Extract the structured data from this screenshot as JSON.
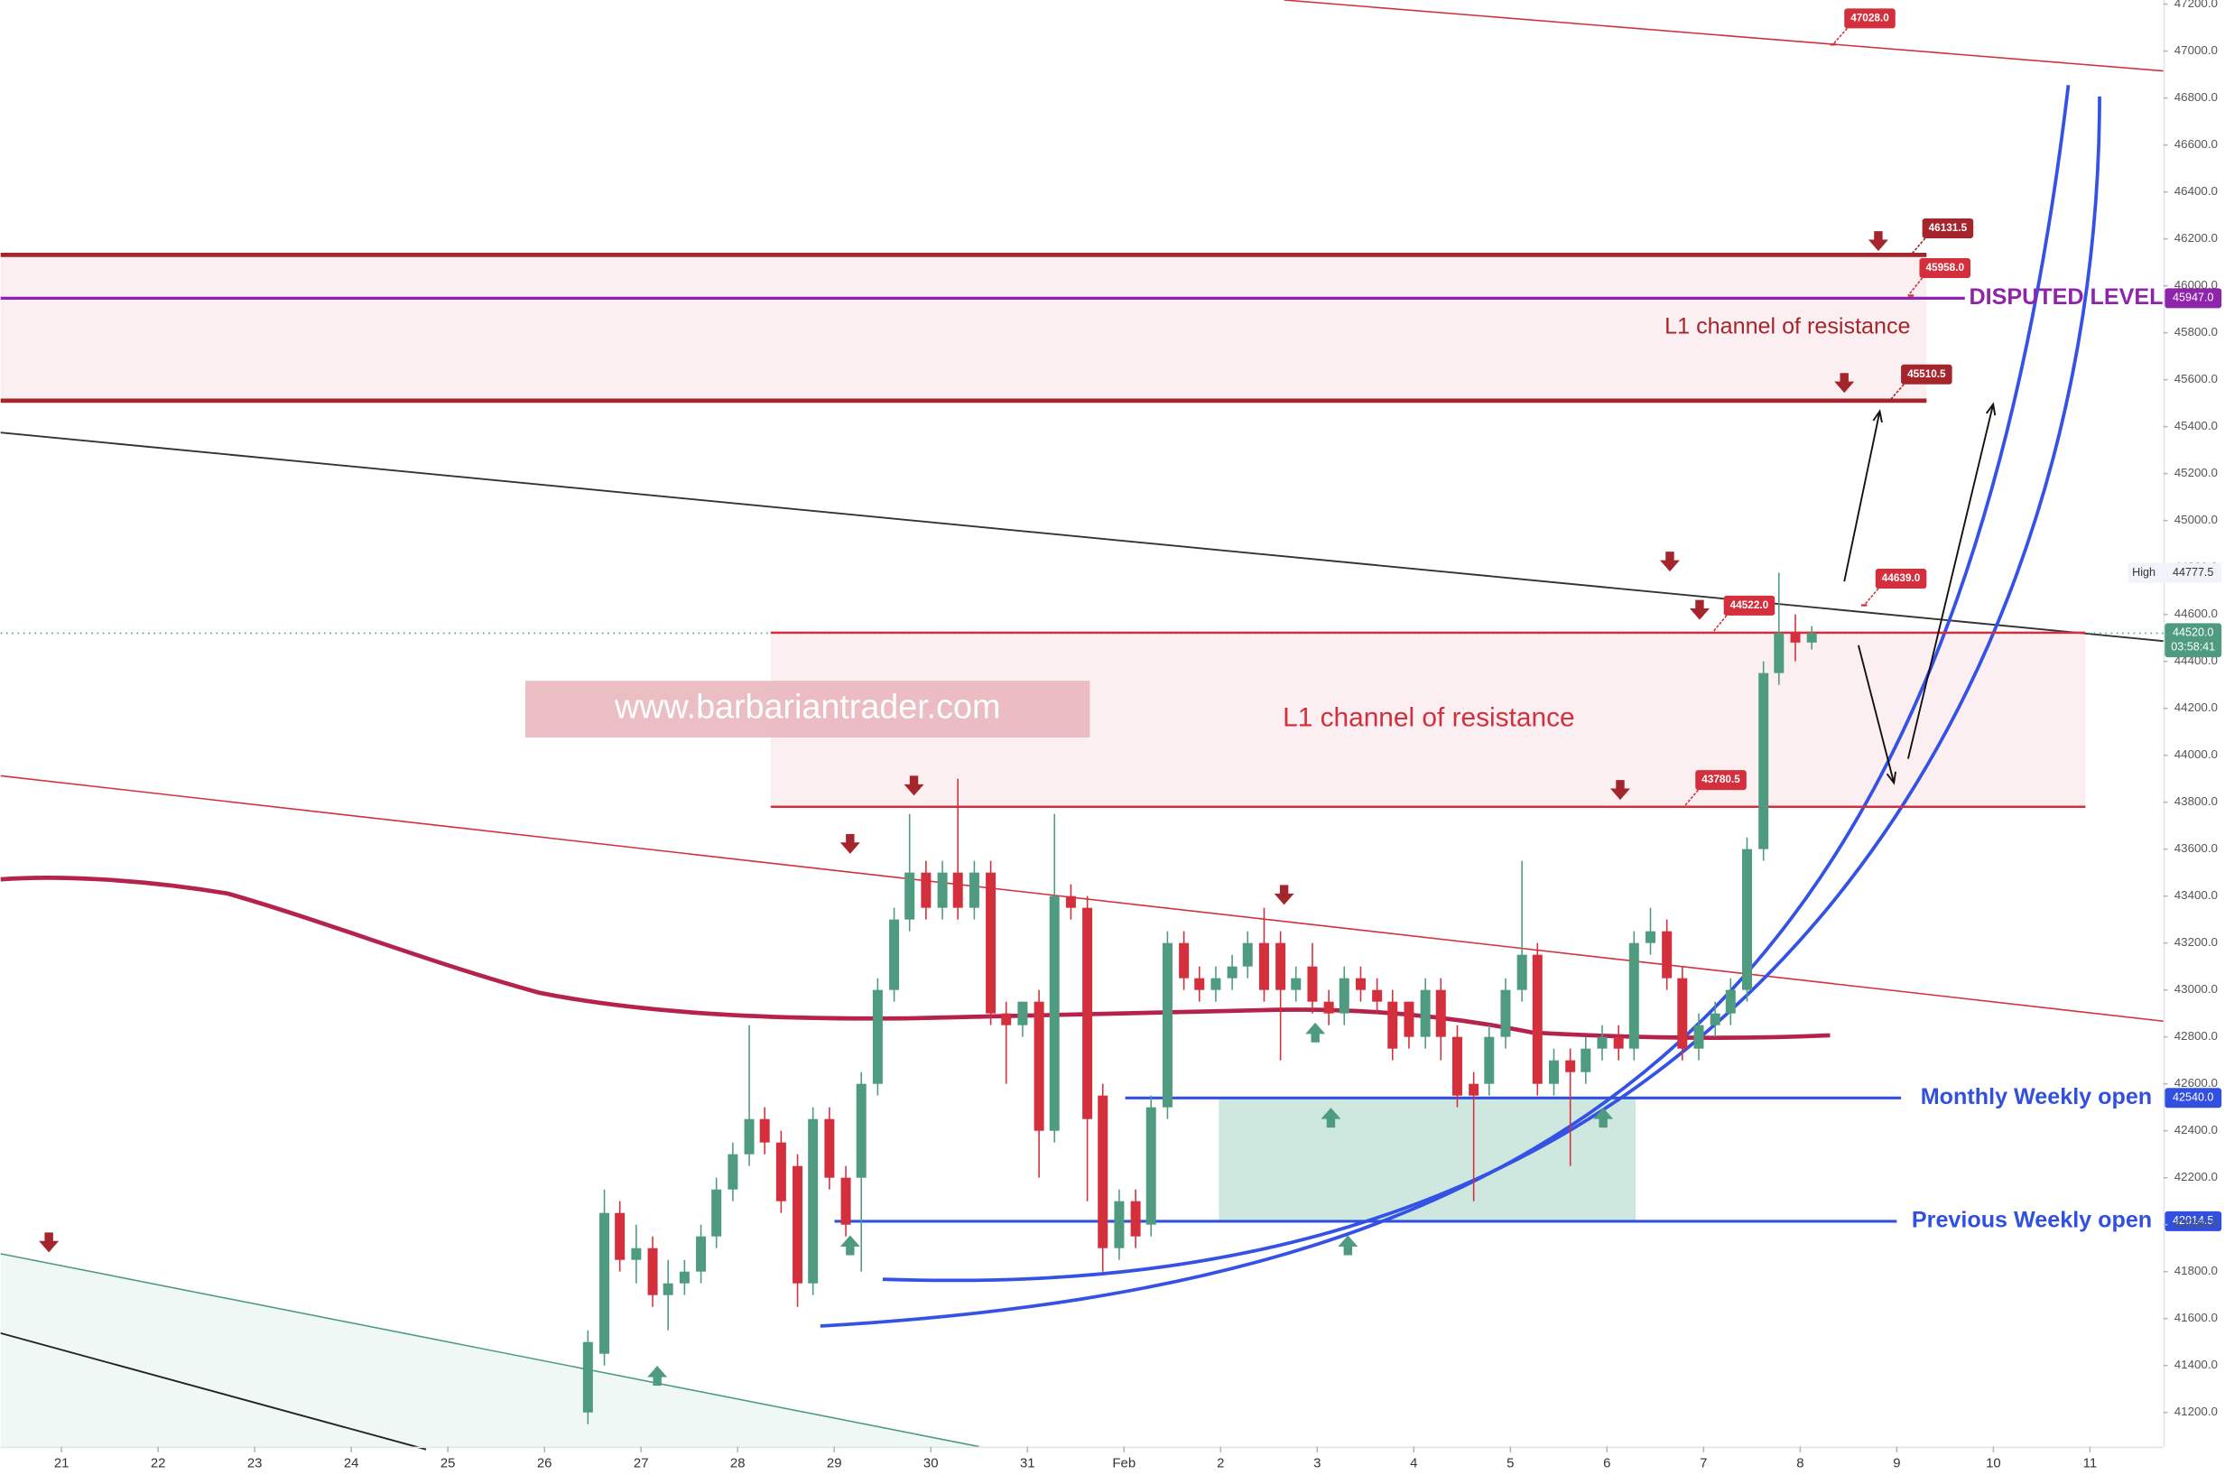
{
  "chart_data": {
    "type": "candlestick",
    "watermark": "www.barbariantrader.com",
    "up_color": "#4f9b80",
    "down_color": "#d42f3c",
    "grid": false,
    "x": [
      26.45,
      26.62,
      26.78,
      26.95,
      27.12,
      27.28,
      27.45,
      27.62,
      27.78,
      27.95,
      28.12,
      28.28,
      28.45,
      28.62,
      28.78,
      28.95,
      29.12,
      29.28,
      29.45,
      29.62,
      29.78,
      29.95,
      30.12,
      30.28,
      30.45,
      30.62,
      30.78,
      30.95,
      31.12,
      31.28,
      31.45,
      31.62,
      31.78,
      31.95,
      32.12,
      32.28,
      32.45,
      32.62,
      32.78,
      32.95,
      33.12,
      33.28,
      33.45,
      33.62,
      33.78,
      33.95,
      34.12,
      34.28,
      34.45,
      34.62,
      34.78,
      34.95,
      35.12,
      35.28,
      35.45,
      35.62,
      35.78,
      35.95,
      36.12,
      36.28,
      36.45,
      36.62,
      36.78,
      36.95,
      37.12,
      37.28,
      37.45,
      37.62,
      37.78,
      37.95,
      38.12,
      38.28,
      38.45,
      38.62,
      38.78,
      38.95,
      39.12
    ],
    "open": [
      41200,
      41450,
      42050,
      41850,
      41900,
      41700,
      41750,
      41800,
      41950,
      42150,
      42300,
      42450,
      42350,
      42250,
      41750,
      42450,
      42200,
      42200,
      42600,
      43000,
      43300,
      43500,
      43350,
      43500,
      43350,
      43500,
      42900,
      42850,
      42950,
      42400,
      43400,
      43350,
      42550,
      41900,
      42100,
      42000,
      42500,
      43200,
      43050,
      43000,
      43050,
      43100,
      43200,
      43200,
      43000,
      43100,
      42950,
      42900,
      43050,
      43000,
      42950,
      42950,
      42800,
      43000,
      42800,
      42600,
      42600,
      42800,
      43000,
      43150,
      42600,
      42700,
      42650,
      42750,
      42800,
      42750,
      43200,
      43250,
      43050,
      42750,
      42850,
      42900,
      43000,
      43600,
      44350,
      44520,
      44480
    ],
    "high": [
      41550,
      42150,
      42100,
      42000,
      41950,
      41850,
      41850,
      42000,
      42200,
      42350,
      42850,
      42500,
      42400,
      42300,
      42500,
      42500,
      42250,
      42650,
      43050,
      43350,
      43750,
      43550,
      43550,
      43900,
      43550,
      43550,
      42950,
      42950,
      43000,
      43750,
      43450,
      43400,
      42600,
      42150,
      42150,
      42550,
      43250,
      43250,
      43100,
      43100,
      43150,
      43250,
      43350,
      43250,
      43100,
      43200,
      43000,
      43100,
      43100,
      43050,
      43000,
      42950,
      43050,
      43050,
      42850,
      42650,
      42850,
      43050,
      43550,
      43200,
      42750,
      42750,
      42800,
      42850,
      42850,
      43250,
      43350,
      43300,
      43100,
      42900,
      42950,
      43050,
      43650,
      44400,
      44777.5,
      44600,
      44550
    ],
    "low": [
      41150,
      41400,
      41800,
      41750,
      41650,
      41550,
      41700,
      41750,
      41900,
      42100,
      42250,
      42300,
      42050,
      41650,
      41700,
      42150,
      41950,
      41800,
      42550,
      42950,
      43250,
      43300,
      43300,
      43300,
      43300,
      42850,
      42600,
      42800,
      42200,
      42350,
      43300,
      42100,
      41800,
      41850,
      41900,
      41950,
      42450,
      43000,
      42950,
      42950,
      43000,
      43050,
      42950,
      42700,
      42950,
      42900,
      42850,
      42850,
      42950,
      42900,
      42700,
      42750,
      42750,
      42700,
      42500,
      42100,
      42550,
      42750,
      42950,
      42550,
      42550,
      42250,
      42600,
      42700,
      42700,
      42700,
      43150,
      43000,
      42700,
      42700,
      42800,
      42850,
      42950,
      43550,
      44300,
      44400,
      44450
    ],
    "close": [
      41500,
      42050,
      41850,
      41900,
      41700,
      41750,
      41800,
      41950,
      42150,
      42300,
      42450,
      42350,
      42100,
      41750,
      42450,
      42200,
      42000,
      42600,
      43000,
      43300,
      43500,
      43350,
      43500,
      43350,
      43500,
      42900,
      42850,
      42950,
      42400,
      43400,
      43350,
      42450,
      41900,
      42100,
      41950,
      42500,
      43200,
      43050,
      43000,
      43050,
      43100,
      43200,
      43000,
      43000,
      43050,
      42950,
      42900,
      43050,
      43000,
      42950,
      42750,
      42800,
      43000,
      42800,
      42550,
      42550,
      42800,
      43000,
      43150,
      42600,
      42700,
      42650,
      42750,
      42800,
      42750,
      43200,
      43250,
      43050,
      42750,
      42850,
      42900,
      43000,
      43600,
      44350,
      44520,
      44480,
      44520
    ],
    "xlim": [
      20.37,
      42.76
    ],
    "ylim": [
      41000,
      47200
    ],
    "xticks": [
      21,
      22,
      23,
      24,
      25,
      26,
      27,
      28,
      29,
      30,
      31,
      {
        "value": 32,
        "label": "Feb"
      },
      {
        "value": 33,
        "label": "2"
      },
      {
        "value": 34,
        "label": "3"
      },
      {
        "value": 35,
        "label": "4"
      },
      {
        "value": 36,
        "label": "5"
      },
      {
        "value": 37,
        "label": "6"
      },
      {
        "value": 38,
        "label": "7"
      },
      {
        "value": 39,
        "label": "8"
      },
      {
        "value": 40,
        "label": "9"
      },
      {
        "value": 41,
        "label": "10"
      },
      {
        "value": 42,
        "label": "11"
      }
    ],
    "yticks": [
      {
        "value": 41200,
        "label": "41200.0"
      },
      {
        "value": 41400,
        "label": "41400.0"
      },
      {
        "value": 41600,
        "label": "41600.0"
      },
      {
        "value": 41800,
        "label": "41800.0"
      },
      {
        "value": 42000,
        "label": "42000.0"
      },
      {
        "value": 42200,
        "label": "42200.0"
      },
      {
        "value": 42400,
        "label": "42400.0"
      },
      {
        "value": 42600,
        "label": "42600.0"
      },
      {
        "value": 42800,
        "label": "42800.0"
      },
      {
        "value": 43000,
        "label": "43000.0"
      },
      {
        "value": 43200,
        "label": "43200.0"
      },
      {
        "value": 43400,
        "label": "43400.0"
      },
      {
        "value": 43600,
        "label": "43600.0"
      },
      {
        "value": 43800,
        "label": "43800.0"
      },
      {
        "value": 44000,
        "label": "44000.0"
      },
      {
        "value": 44200,
        "label": "44200.0"
      },
      {
        "value": 44400,
        "label": "44400.0"
      },
      {
        "value": 44600,
        "label": "44600.0"
      },
      {
        "value": 44800,
        "label": "44800.0"
      },
      {
        "value": 45000,
        "label": "45000.0"
      },
      {
        "value": 45200,
        "label": "45200.0"
      },
      {
        "value": 45400,
        "label": "45400.0"
      },
      {
        "value": 45600,
        "label": "45600.0"
      },
      {
        "value": 45800,
        "label": "45800.0"
      },
      {
        "value": 46000,
        "label": "46000.0"
      },
      {
        "value": 46200,
        "label": "46200.0"
      },
      {
        "value": 46400,
        "label": "46400.0"
      },
      {
        "value": 46600,
        "label": "46600.0"
      },
      {
        "value": 46800,
        "label": "46800.0"
      },
      {
        "value": 47000,
        "label": "47000.0"
      },
      {
        "value": 47200,
        "label": "47200.0"
      }
    ],
    "levels": [
      {
        "value": 46131.5,
        "label": "46131.5",
        "color": "#a4262c"
      },
      {
        "value": 45510.5,
        "label": "45510.5",
        "color": "#a4262c"
      },
      {
        "value": 44522.0,
        "label": "44522.0",
        "color": "#d32f3c"
      },
      {
        "value": 43780.5,
        "label": "43780.5",
        "color": "#d32f3c"
      },
      {
        "value": 45947.0,
        "label": "45947.0",
        "color": "#8e24aa",
        "name": "DISPUTED LEVEL"
      },
      {
        "value": 42540.0,
        "label": "42540.0",
        "color": "#3150e0",
        "name": "Monthly Weekly open"
      },
      {
        "value": 42014.5,
        "label": "42014.5",
        "color": "#3150e0",
        "name": "Previous Weekly open"
      }
    ],
    "tags": [
      {
        "value": 47028.0,
        "label": "47028.0"
      },
      {
        "value": 45958.0,
        "label": "45958.0"
      },
      {
        "value": 44639.0,
        "label": "44639.0"
      }
    ],
    "channel_labels": [
      "L1 channel of resistance",
      "L1 channel of resistance"
    ],
    "high_marker": {
      "label": "High",
      "value": 44777.5,
      "value_label": "44777.5"
    },
    "last_price": {
      "value": 44520.0,
      "label": "44520.0",
      "countdown": "03:58:41"
    }
  }
}
